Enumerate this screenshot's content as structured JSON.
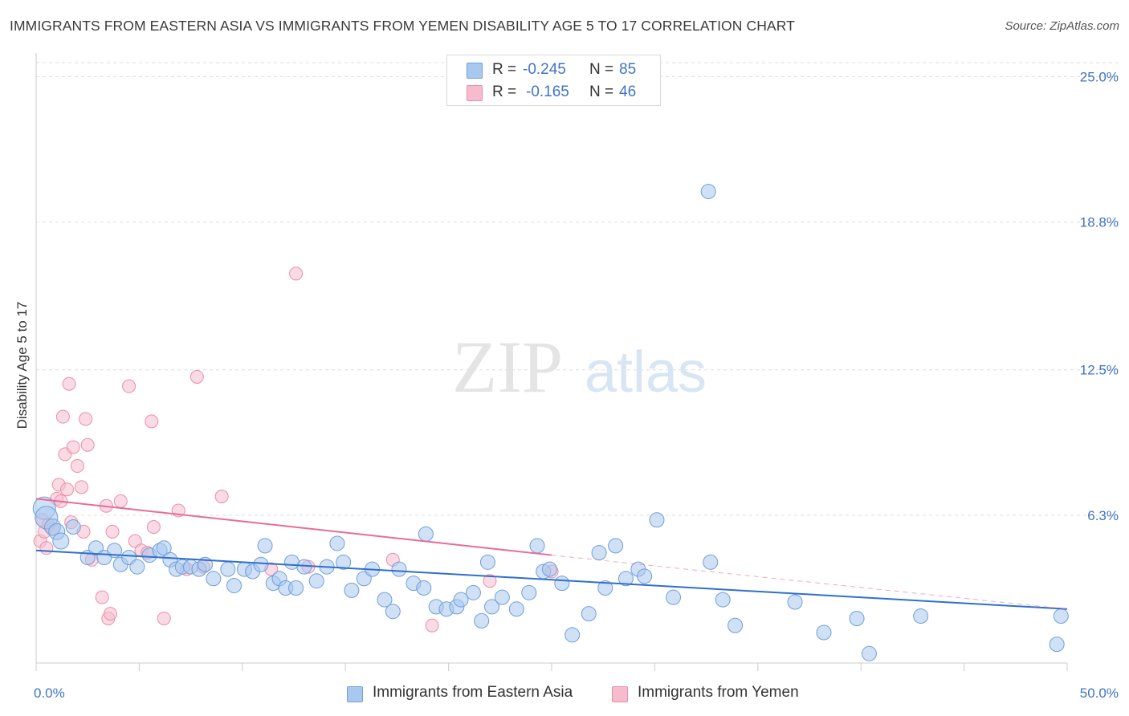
{
  "title": "IMMIGRANTS FROM EASTERN ASIA VS IMMIGRANTS FROM YEMEN DISABILITY AGE 5 TO 17 CORRELATION CHART",
  "source": "Source: ZipAtlas.com",
  "watermark": {
    "zip": "ZIP",
    "atlas": "atlas"
  },
  "colors": {
    "blue_fill": "#a9c8ef",
    "blue_stroke": "#6e9fda",
    "blue_line": "#2f6fce",
    "pink_fill": "#f6bccd",
    "pink_stroke": "#ea8ea9",
    "pink_line": "#e76c98",
    "axis_text": "#3f74c6",
    "grid": "#dddddd"
  },
  "legend": {
    "series": [
      {
        "r_label": "R =",
        "r_value": "-0.245",
        "n_label": "N =",
        "n_value": "85"
      },
      {
        "r_label": "R =",
        "r_value": "-0.165",
        "n_label": "N =",
        "n_value": "46"
      }
    ]
  },
  "chart_data": {
    "type": "scatter",
    "title": "IMMIGRANTS FROM EASTERN ASIA VS IMMIGRANTS FROM YEMEN DISABILITY AGE 5 TO 17 CORRELATION CHART",
    "xlabel": "",
    "ylabel": "Disability Age 5 to 17",
    "xlim": [
      0,
      50
    ],
    "ylim": [
      0,
      25.8
    ],
    "x_tick_labels": [
      "0.0%",
      "50.0%"
    ],
    "y_ticks": [
      6.3,
      12.5,
      18.8,
      25.0
    ],
    "y_tick_labels": [
      "6.3%",
      "12.5%",
      "18.8%",
      "25.0%"
    ],
    "grid": "horizontal dashed",
    "legend_position": "top-center",
    "series": [
      {
        "name": "Immigrants from Eastern Asia",
        "trend": {
          "x": [
            0,
            50
          ],
          "y": [
            4.8,
            2.3
          ],
          "style": "solid"
        },
        "points": [
          [
            0.4,
            6.6
          ],
          [
            0.5,
            6.2
          ],
          [
            0.8,
            5.8
          ],
          [
            1.0,
            5.6
          ],
          [
            1.2,
            5.2
          ],
          [
            1.8,
            5.8
          ],
          [
            2.5,
            4.5
          ],
          [
            2.9,
            4.9
          ],
          [
            3.3,
            4.5
          ],
          [
            3.8,
            4.8
          ],
          [
            4.1,
            4.2
          ],
          [
            4.5,
            4.5
          ],
          [
            4.9,
            4.1
          ],
          [
            5.5,
            4.6
          ],
          [
            6.0,
            4.8
          ],
          [
            6.2,
            4.9
          ],
          [
            6.5,
            4.4
          ],
          [
            6.8,
            4.0
          ],
          [
            7.1,
            4.1
          ],
          [
            7.5,
            4.1
          ],
          [
            7.9,
            4.0
          ],
          [
            8.2,
            4.2
          ],
          [
            8.6,
            3.6
          ],
          [
            9.3,
            4.0
          ],
          [
            9.6,
            3.3
          ],
          [
            10.1,
            4.0
          ],
          [
            10.5,
            3.9
          ],
          [
            10.9,
            4.2
          ],
          [
            11.1,
            5.0
          ],
          [
            11.5,
            3.4
          ],
          [
            11.8,
            3.6
          ],
          [
            12.1,
            3.2
          ],
          [
            12.4,
            4.3
          ],
          [
            12.6,
            3.2
          ],
          [
            13.0,
            4.1
          ],
          [
            13.6,
            3.5
          ],
          [
            14.1,
            4.1
          ],
          [
            14.6,
            5.1
          ],
          [
            14.9,
            4.3
          ],
          [
            15.3,
            3.1
          ],
          [
            15.9,
            3.6
          ],
          [
            16.3,
            4.0
          ],
          [
            16.9,
            2.7
          ],
          [
            17.3,
            2.2
          ],
          [
            17.6,
            4.0
          ],
          [
            18.3,
            3.4
          ],
          [
            18.8,
            3.2
          ],
          [
            18.9,
            5.5
          ],
          [
            19.4,
            2.4
          ],
          [
            19.9,
            2.3
          ],
          [
            20.4,
            2.4
          ],
          [
            20.6,
            2.7
          ],
          [
            21.2,
            3.0
          ],
          [
            21.6,
            1.8
          ],
          [
            21.9,
            4.3
          ],
          [
            22.1,
            2.4
          ],
          [
            22.6,
            2.8
          ],
          [
            23.3,
            2.3
          ],
          [
            23.9,
            3.0
          ],
          [
            24.3,
            5.0
          ],
          [
            24.6,
            3.9
          ],
          [
            24.9,
            4.0
          ],
          [
            25.5,
            3.4
          ],
          [
            26.0,
            1.2
          ],
          [
            26.8,
            2.1
          ],
          [
            27.3,
            4.7
          ],
          [
            27.6,
            3.2
          ],
          [
            28.1,
            5.0
          ],
          [
            28.6,
            3.6
          ],
          [
            29.2,
            4.0
          ],
          [
            29.5,
            3.7
          ],
          [
            30.1,
            6.1
          ],
          [
            30.9,
            2.8
          ],
          [
            32.6,
            20.1
          ],
          [
            32.7,
            4.3
          ],
          [
            33.3,
            2.7
          ],
          [
            33.9,
            1.6
          ],
          [
            36.8,
            2.6
          ],
          [
            38.2,
            1.3
          ],
          [
            39.8,
            1.9
          ],
          [
            40.4,
            0.4
          ],
          [
            42.9,
            2.0
          ],
          [
            49.5,
            0.8
          ],
          [
            49.7,
            2.0
          ]
        ]
      },
      {
        "name": "Immigrants from Yemen",
        "trend": {
          "x": [
            0,
            25
          ],
          "y": [
            7.0,
            4.6
          ],
          "style": "solid",
          "extension": {
            "x": [
              25,
              50
            ],
            "y": [
              4.6,
              2.3
            ],
            "style": "dashed"
          }
        },
        "points": [
          [
            0.2,
            5.2
          ],
          [
            0.3,
            6.1
          ],
          [
            0.4,
            5.6
          ],
          [
            0.5,
            4.9
          ],
          [
            0.6,
            5.9
          ],
          [
            0.8,
            5.7
          ],
          [
            1.0,
            7.0
          ],
          [
            1.1,
            7.6
          ],
          [
            1.2,
            6.9
          ],
          [
            1.3,
            10.5
          ],
          [
            1.4,
            8.9
          ],
          [
            1.5,
            7.4
          ],
          [
            1.6,
            11.9
          ],
          [
            1.7,
            6.0
          ],
          [
            1.8,
            9.2
          ],
          [
            2.0,
            8.4
          ],
          [
            2.2,
            7.5
          ],
          [
            2.3,
            5.6
          ],
          [
            2.4,
            10.4
          ],
          [
            2.5,
            9.3
          ],
          [
            2.7,
            4.4
          ],
          [
            3.2,
            2.8
          ],
          [
            3.4,
            6.7
          ],
          [
            3.5,
            1.9
          ],
          [
            3.6,
            2.1
          ],
          [
            3.7,
            5.6
          ],
          [
            4.1,
            6.9
          ],
          [
            4.5,
            11.8
          ],
          [
            4.8,
            5.2
          ],
          [
            5.1,
            4.8
          ],
          [
            5.4,
            4.7
          ],
          [
            5.6,
            10.3
          ],
          [
            5.7,
            5.8
          ],
          [
            6.2,
            1.9
          ],
          [
            6.9,
            6.5
          ],
          [
            7.3,
            4.0
          ],
          [
            7.8,
            12.2
          ],
          [
            8.1,
            4.1
          ],
          [
            9.0,
            7.1
          ],
          [
            11.4,
            4.0
          ],
          [
            12.6,
            16.6
          ],
          [
            13.2,
            4.1
          ],
          [
            17.3,
            4.4
          ],
          [
            19.2,
            1.6
          ],
          [
            22.0,
            3.5
          ],
          [
            25.0,
            3.9
          ]
        ]
      }
    ]
  },
  "bottom_legend": [
    "Immigrants from Eastern Asia",
    "Immigrants from Yemen"
  ]
}
